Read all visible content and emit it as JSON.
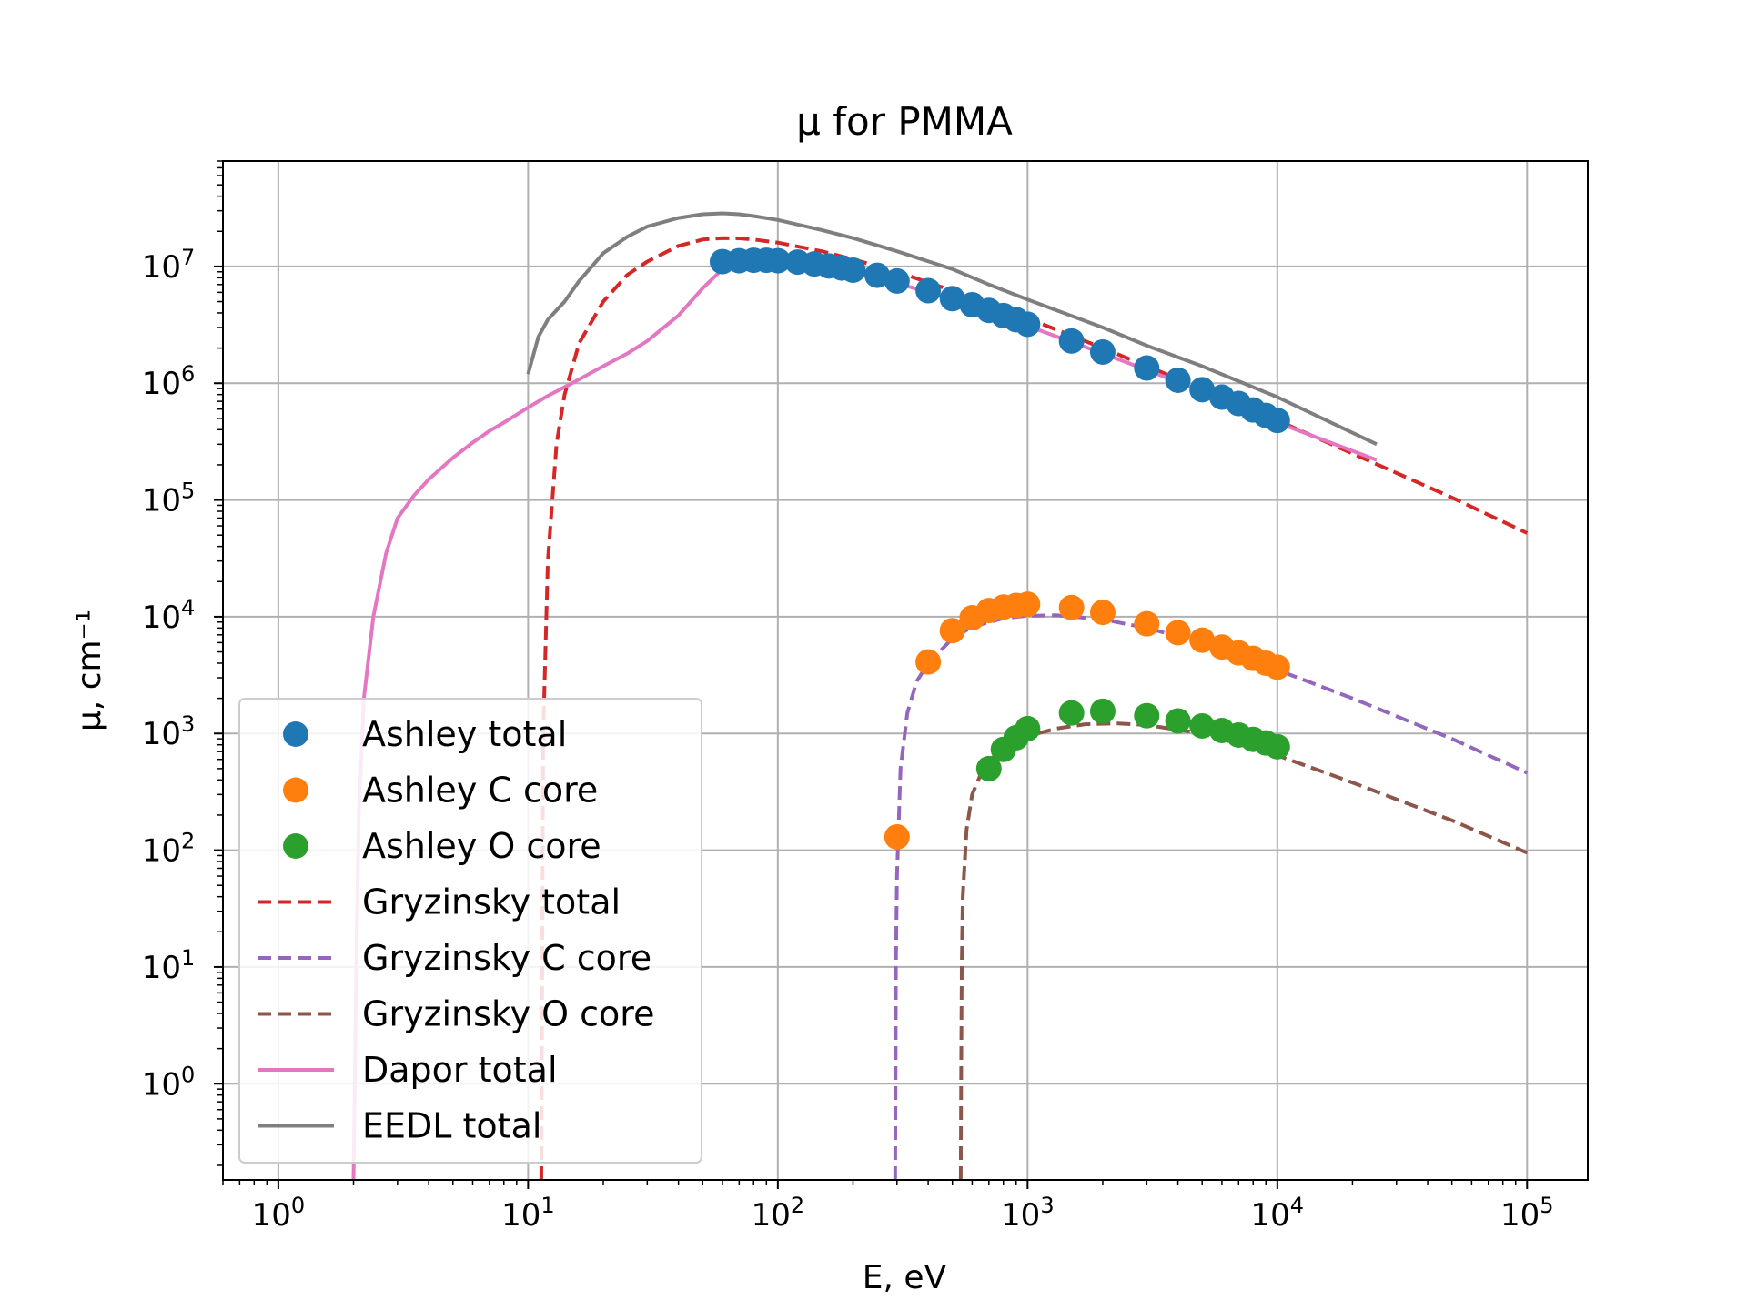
{
  "chart_data": {
    "type": "line",
    "title": "μ for PMMA",
    "xlabel": "E, eV",
    "ylabel": "μ, cm⁻¹",
    "xscale": "log",
    "yscale": "log",
    "xlim": [
      0.6,
      175000
    ],
    "ylim": [
      0.15,
      80000000
    ],
    "grid": true,
    "legend_position": "lower-left",
    "x_ticks": [
      1,
      10,
      100,
      1000,
      10000,
      100000
    ],
    "x_tick_labels": [
      {
        "base": "10",
        "exp": "0"
      },
      {
        "base": "10",
        "exp": "1"
      },
      {
        "base": "10",
        "exp": "2"
      },
      {
        "base": "10",
        "exp": "3"
      },
      {
        "base": "10",
        "exp": "4"
      },
      {
        "base": "10",
        "exp": "5"
      }
    ],
    "y_ticks": [
      1,
      10,
      100,
      1000,
      10000,
      100000,
      1000000,
      10000000
    ],
    "y_tick_labels": [
      {
        "base": "10",
        "exp": "0"
      },
      {
        "base": "10",
        "exp": "1"
      },
      {
        "base": "10",
        "exp": "2"
      },
      {
        "base": "10",
        "exp": "3"
      },
      {
        "base": "10",
        "exp": "4"
      },
      {
        "base": "10",
        "exp": "5"
      },
      {
        "base": "10",
        "exp": "6"
      },
      {
        "base": "10",
        "exp": "7"
      }
    ],
    "series": [
      {
        "name": "Ashley total",
        "style": "markers",
        "color": "#1f77b4",
        "x": [
          60,
          70,
          80,
          90,
          100,
          120,
          140,
          160,
          180,
          200,
          250,
          300,
          400,
          500,
          600,
          700,
          800,
          900,
          1000,
          1500,
          2000,
          3000,
          4000,
          5000,
          6000,
          7000,
          8000,
          9000,
          10000
        ],
        "y": [
          11000000,
          11200000,
          11300000,
          11300000,
          11200000,
          10900000,
          10500000,
          10100000,
          9700000,
          9300000,
          8400000,
          7500000,
          6200000,
          5300000,
          4700000,
          4200000,
          3800000,
          3500000,
          3200000,
          2300000,
          1850000,
          1350000,
          1060000,
          880000,
          760000,
          670000,
          590000,
          530000,
          480000
        ]
      },
      {
        "name": "Ashley C core",
        "style": "markers",
        "color": "#ff7f0e",
        "x": [
          300,
          400,
          500,
          600,
          700,
          800,
          900,
          1000,
          1500,
          2000,
          3000,
          4000,
          5000,
          6000,
          7000,
          8000,
          9000,
          10000
        ],
        "y": [
          130,
          4100,
          7600,
          9800,
          11300,
          12100,
          12500,
          12800,
          12000,
          10900,
          8700,
          7300,
          6300,
          5500,
          4900,
          4400,
          4000,
          3700
        ]
      },
      {
        "name": "Ashley O core",
        "style": "markers",
        "color": "#2ca02c",
        "x": [
          700,
          800,
          900,
          1000,
          1500,
          2000,
          3000,
          4000,
          5000,
          6000,
          7000,
          8000,
          9000,
          10000
        ],
        "y": [
          500,
          730,
          920,
          1100,
          1500,
          1550,
          1420,
          1280,
          1160,
          1060,
          970,
          890,
          830,
          770
        ]
      },
      {
        "name": "Gryzinsky total",
        "style": "dashed",
        "color": "#d62728",
        "x": [
          11.3,
          11.5,
          12,
          13,
          14,
          16,
          20,
          25,
          30,
          40,
          50,
          60,
          70,
          80,
          100,
          150,
          200,
          300,
          500,
          700,
          1000,
          2000,
          3000,
          5000,
          10000,
          20000,
          50000,
          100000
        ],
        "y": [
          0.15,
          1000,
          30000,
          300000,
          800000,
          2200000,
          5000000,
          8500000,
          11000000,
          15000000,
          17000000,
          17500000,
          17400000,
          17000000,
          16000000,
          13500000,
          11500000,
          9000000,
          6200000,
          4800000,
          3600000,
          2000000,
          1400000,
          900000,
          480000,
          250000,
          105000,
          52000
        ]
      },
      {
        "name": "Gryzinsky C core",
        "style": "dashed",
        "color": "#9467bd",
        "x": [
          295,
          296,
          297,
          300,
          310,
          330,
          360,
          400,
          500,
          600,
          800,
          1000,
          1300,
          2000,
          3000,
          5000,
          10000,
          20000,
          50000,
          100000
        ],
        "y": [
          0.15,
          1,
          10,
          60,
          500,
          1500,
          2800,
          4000,
          6500,
          8200,
          9700,
          10200,
          10300,
          9500,
          8000,
          6000,
          3500,
          2000,
          900,
          460
        ]
      },
      {
        "name": "Gryzinsky O core",
        "style": "dashed",
        "color": "#8c564b",
        "x": [
          540,
          542,
          545,
          550,
          570,
          600,
          650,
          700,
          800,
          1000,
          1300,
          1700,
          2300,
          3000,
          5000,
          10000,
          20000,
          50000,
          100000
        ],
        "y": [
          0.15,
          1,
          10,
          40,
          150,
          300,
          450,
          580,
          750,
          950,
          1100,
          1200,
          1220,
          1180,
          1000,
          650,
          380,
          180,
          95
        ]
      },
      {
        "name": "Dapor total",
        "style": "solid",
        "color": "#e377c2",
        "x": [
          2,
          2.05,
          2.1,
          2.2,
          2.4,
          2.7,
          3,
          3.5,
          4,
          5,
          6,
          7,
          8,
          10,
          12,
          15,
          20,
          25,
          30,
          40,
          50,
          60,
          70,
          80,
          100,
          150,
          200,
          300,
          500,
          700,
          1000,
          2000,
          3000,
          5000,
          10000,
          25000
        ],
        "y": [
          0.15,
          10,
          200,
          2000,
          10000,
          35000,
          70000,
          110000,
          150000,
          230000,
          310000,
          390000,
          460000,
          620000,
          780000,
          1000000,
          1400000,
          1800000,
          2300000,
          3800000,
          6500000,
          9500000,
          10900000,
          11200000,
          11000000,
          10000000,
          9000000,
          7200000,
          5200000,
          4100000,
          3100000,
          1800000,
          1300000,
          850000,
          460000,
          220000
        ]
      },
      {
        "name": "EEDL total",
        "style": "solid",
        "color": "#7f7f7f",
        "x": [
          10,
          11,
          12,
          14,
          16,
          18,
          20,
          25,
          30,
          40,
          50,
          60,
          70,
          80,
          100,
          150,
          200,
          300,
          500,
          700,
          1000,
          2000,
          3000,
          5000,
          10000,
          25000
        ],
        "y": [
          1200000,
          2500000,
          3500000,
          5000000,
          7500000,
          10000000,
          13000000,
          18000000,
          22000000,
          26000000,
          28000000,
          28500000,
          28000000,
          27000000,
          25000000,
          20500000,
          17500000,
          13500000,
          9500000,
          7000000,
          5200000,
          3000000,
          2100000,
          1400000,
          760000,
          300000
        ]
      }
    ]
  }
}
